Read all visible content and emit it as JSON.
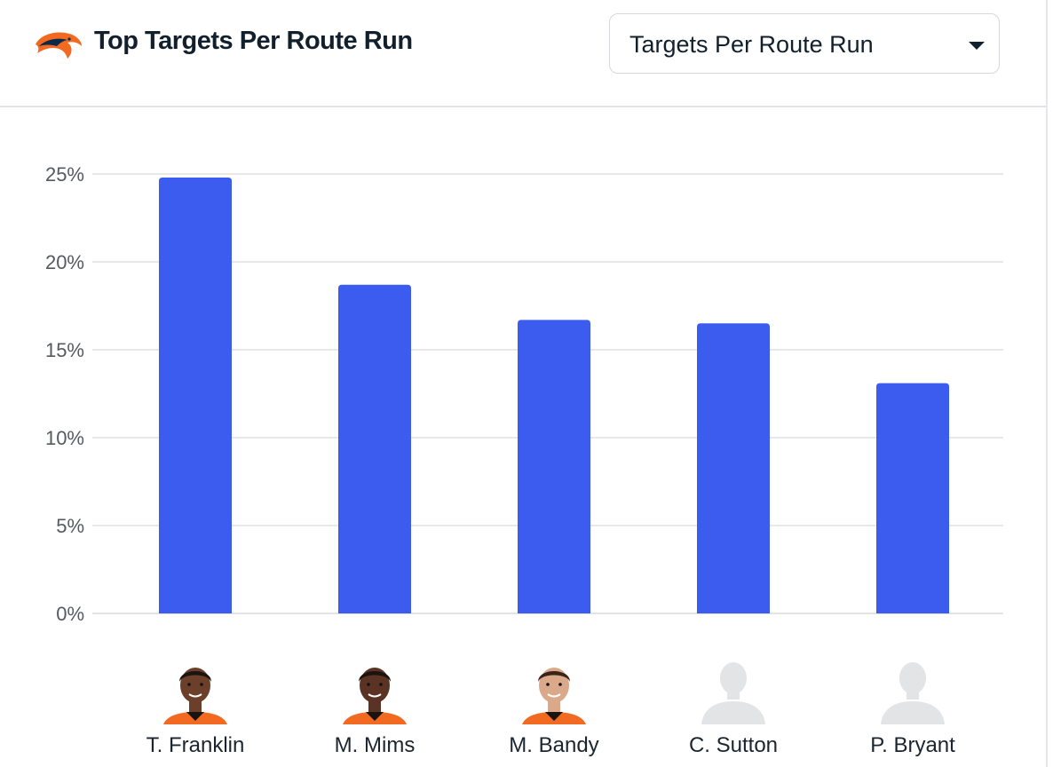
{
  "header": {
    "title": "Top Targets Per Route Run",
    "dropdown": {
      "selected": "Targets Per Route Run"
    },
    "logo_icon": "broncos-logo-icon"
  },
  "players": [
    {
      "name": "T. Franklin",
      "photo": "player-headshot",
      "skin": "#6b3f2a",
      "hair": "#1a1410"
    },
    {
      "name": "M. Mims",
      "photo": "player-headshot",
      "skin": "#5a3324",
      "hair": "#1a1410"
    },
    {
      "name": "M. Bandy",
      "photo": "player-headshot",
      "skin": "#d9a98a",
      "hair": "#3a2418"
    },
    {
      "name": "C. Sutton",
      "photo": "silhouette"
    },
    {
      "name": "P. Bryant",
      "photo": "silhouette"
    }
  ],
  "colors": {
    "bar": "#3c5cf0",
    "grid": "#d9dadd",
    "tick": "#555a60",
    "jersey": "#f26a22",
    "silhouette": "#e3e4e6"
  },
  "chart_data": {
    "type": "bar",
    "title": "Top Targets Per Route Run",
    "categories": [
      "T. Franklin",
      "M. Mims",
      "M. Bandy",
      "C. Sutton",
      "P. Bryant"
    ],
    "values": [
      24.8,
      18.7,
      16.7,
      16.5,
      13.1
    ],
    "ylim": [
      0,
      25
    ],
    "yticks": [
      0,
      5,
      10,
      15,
      20,
      25
    ],
    "ytick_labels": [
      "0%",
      "5%",
      "10%",
      "15%",
      "20%",
      "25%"
    ],
    "grid": true,
    "legend": "none"
  }
}
